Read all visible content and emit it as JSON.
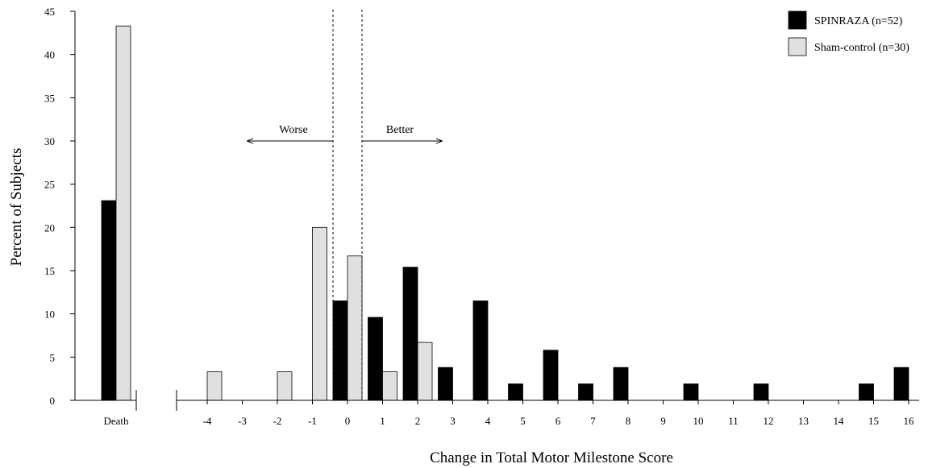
{
  "chart_data": {
    "type": "bar",
    "title": "",
    "xlabel": "Change in Total Motor Milestone Score",
    "ylabel": "Percent of Subjects",
    "ylim": [
      0,
      45
    ],
    "yticks": [
      0,
      5,
      10,
      15,
      20,
      25,
      30,
      35,
      40,
      45
    ],
    "grid": false,
    "legend_position": "top-right",
    "death_category": "Death",
    "categories": [
      "-4",
      "-3",
      "-2",
      "-1",
      "0",
      "1",
      "2",
      "3",
      "4",
      "5",
      "6",
      "7",
      "8",
      "9",
      "10",
      "11",
      "12",
      "13",
      "14",
      "15",
      "16"
    ],
    "series": [
      {
        "name": "SPINRAZA (n=52)",
        "color": "#000000",
        "death": 23.1,
        "values": [
          0,
          0,
          0,
          0,
          11.5,
          9.6,
          15.4,
          3.8,
          11.5,
          1.9,
          5.8,
          1.9,
          3.8,
          0,
          1.9,
          0,
          1.9,
          0,
          0,
          1.9,
          3.8
        ]
      },
      {
        "name": "Sham-control (n=30)",
        "color": "#e0e0e0",
        "death": 43.3,
        "values": [
          3.3,
          0,
          3.3,
          20.0,
          16.7,
          3.3,
          6.7,
          0,
          0,
          0,
          0,
          0,
          0,
          0,
          0,
          0,
          0,
          0,
          0,
          0,
          0
        ]
      }
    ],
    "annotations": {
      "worse": "Worse",
      "better": "Better"
    }
  }
}
